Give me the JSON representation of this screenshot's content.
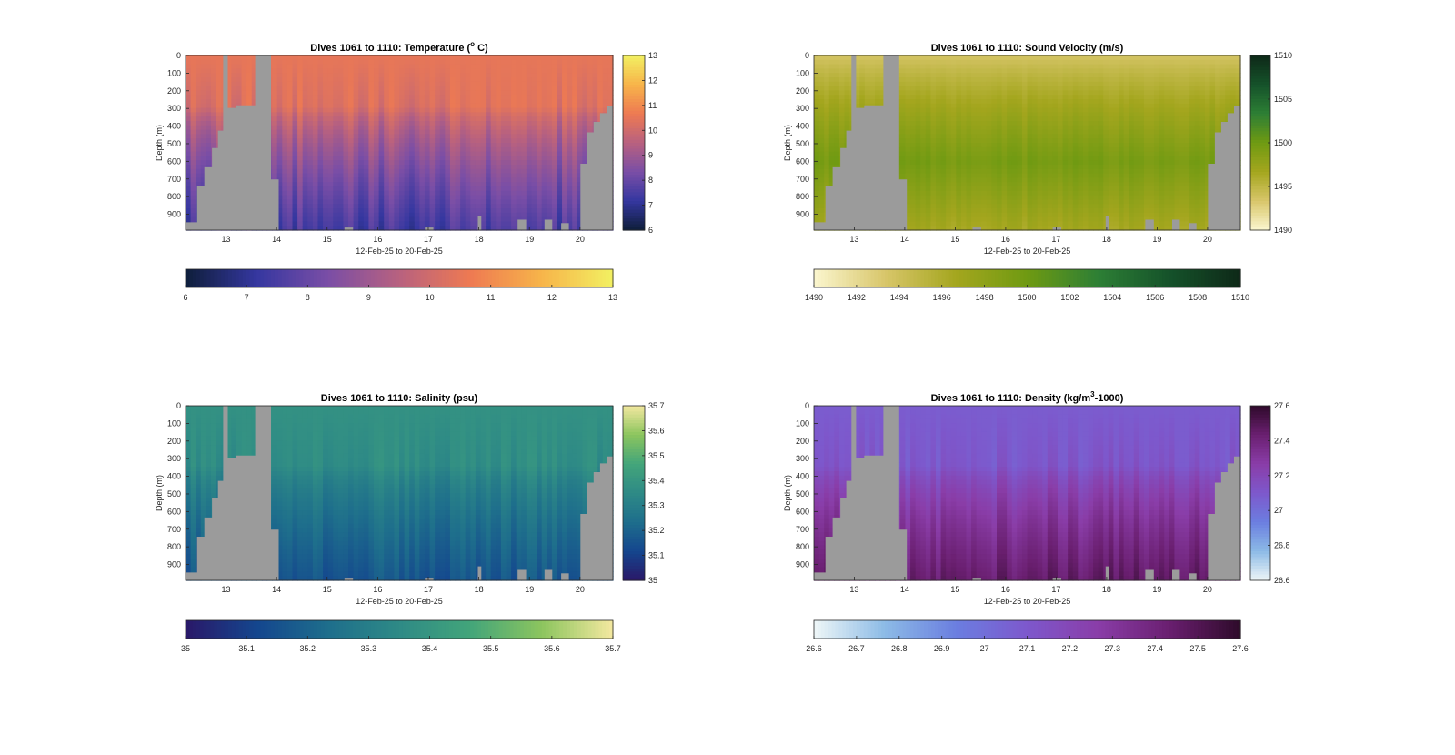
{
  "figure": {
    "background": "#ffffff",
    "missing_color": "#9b9b9b"
  },
  "chart_data": [
    {
      "type": "heatmap",
      "title_prefix": "Dives 1061 to 1110: Temperature (",
      "title_sup": "o",
      "title_suffix": " C)",
      "xlabel": "12-Feb-25 to 20-Feb-25",
      "ylabel": "Depth (m)",
      "xlim": [
        12.2,
        20.65
      ],
      "ylim": [
        0,
        990
      ],
      "x_ticks": [
        13,
        14,
        15,
        16,
        17,
        18,
        19,
        20
      ],
      "x_tick_labels": [
        "13",
        "14",
        "15",
        "16",
        "17",
        "18",
        "19",
        "20"
      ],
      "y_ticks": [
        0,
        100,
        200,
        300,
        400,
        500,
        600,
        700,
        800,
        900
      ],
      "y_tick_labels": [
        "0",
        "100",
        "200",
        "300",
        "400",
        "500",
        "600",
        "700",
        "800",
        "900"
      ],
      "depth_profile": {
        "surface": 10.5,
        "thermocline_depth": 300,
        "deep": 7.4
      },
      "colormap": [
        "#0e1e3a",
        "#3537a0",
        "#7a4ea6",
        "#b8617f",
        "#ee7a52",
        "#f7b44a",
        "#f2f062"
      ],
      "color_range": [
        6,
        13
      ],
      "colorbar_vertical": {
        "ticks": [
          6,
          7,
          8,
          9,
          10,
          11,
          12,
          13
        ],
        "labels": [
          "6",
          "7",
          "8",
          "9",
          "10",
          "11",
          "12",
          "13"
        ]
      },
      "colorbar_horizontal": {
        "ticks": [
          6,
          7,
          8,
          9,
          10,
          11,
          12,
          13
        ],
        "labels": [
          "6",
          "7",
          "8",
          "9",
          "10",
          "11",
          "12",
          "13"
        ]
      }
    },
    {
      "type": "heatmap",
      "title_prefix": "Dives 1061 to 1110: Sound Velocity (m/s)",
      "title_sup": "",
      "title_suffix": "",
      "xlabel": "12-Feb-25 to 20-Feb-25",
      "ylabel": "Depth (m)",
      "xlim": [
        12.2,
        20.65
      ],
      "ylim": [
        0,
        990
      ],
      "x_ticks": [
        13,
        14,
        15,
        16,
        17,
        18,
        19,
        20
      ],
      "x_tick_labels": [
        "13",
        "14",
        "15",
        "16",
        "17",
        "18",
        "19",
        "20"
      ],
      "y_ticks": [
        0,
        100,
        200,
        300,
        400,
        500,
        600,
        700,
        800,
        900
      ],
      "y_tick_labels": [
        "0",
        "100",
        "200",
        "300",
        "400",
        "500",
        "600",
        "700",
        "800",
        "900"
      ],
      "depth_profile": {
        "surface": 1493.5,
        "mid": 1499.5,
        "mid_depth": 600,
        "deep": 1496.5
      },
      "colormap": [
        "#fbf6cf",
        "#d8c66a",
        "#a4a61e",
        "#6f9a12",
        "#2d7f35",
        "#15522a",
        "#0e2918"
      ],
      "color_range": [
        1490,
        1510
      ],
      "colorbar_vertical": {
        "ticks": [
          1490,
          1495,
          1500,
          1505,
          1510
        ],
        "labels": [
          "1490",
          "1495",
          "1500",
          "1505",
          "1510"
        ]
      },
      "colorbar_horizontal": {
        "ticks": [
          1490,
          1492,
          1494,
          1496,
          1498,
          1500,
          1502,
          1504,
          1506,
          1508,
          1510
        ],
        "labels": [
          "1490",
          "1492",
          "1494",
          "1496",
          "1498",
          "1500",
          "1502",
          "1504",
          "1506",
          "1508",
          "1510"
        ]
      }
    },
    {
      "type": "heatmap",
      "title_prefix": "Dives 1061 to 1110: Salinity (psu)",
      "title_sup": "",
      "title_suffix": "",
      "xlabel": "12-Feb-25 to 20-Feb-25",
      "ylabel": "Depth (m)",
      "xlim": [
        12.2,
        20.65
      ],
      "ylim": [
        0,
        990
      ],
      "x_ticks": [
        13,
        14,
        15,
        16,
        17,
        18,
        19,
        20
      ],
      "x_tick_labels": [
        "13",
        "14",
        "15",
        "16",
        "17",
        "18",
        "19",
        "20"
      ],
      "y_ticks": [
        0,
        100,
        200,
        300,
        400,
        500,
        600,
        700,
        800,
        900
      ],
      "y_tick_labels": [
        "0",
        "100",
        "200",
        "300",
        "400",
        "500",
        "600",
        "700",
        "800",
        "900"
      ],
      "depth_profile": {
        "surface": 35.38,
        "thermocline_depth": 350,
        "deep": 35.16
      },
      "colormap": [
        "#2a1868",
        "#14468e",
        "#1e6e8c",
        "#2e8a86",
        "#43a57a",
        "#8cc55e",
        "#f4e8a0"
      ],
      "color_range": [
        35.0,
        35.7
      ],
      "colorbar_vertical": {
        "ticks": [
          35.0,
          35.1,
          35.2,
          35.3,
          35.4,
          35.5,
          35.6,
          35.7
        ],
        "labels": [
          "35",
          "35.1",
          "35.2",
          "35.3",
          "35.4",
          "35.5",
          "35.6",
          "35.7"
        ]
      },
      "colorbar_horizontal": {
        "ticks": [
          35.0,
          35.1,
          35.2,
          35.3,
          35.4,
          35.5,
          35.6,
          35.7
        ],
        "labels": [
          "35",
          "35.1",
          "35.2",
          "35.3",
          "35.4",
          "35.5",
          "35.6",
          "35.7"
        ]
      }
    },
    {
      "type": "heatmap",
      "title_prefix": "Dives 1061 to 1110: Density (kg/m",
      "title_sup": "3",
      "title_suffix": "-1000)",
      "xlabel": "12-Feb-25 to 20-Feb-25",
      "ylabel": "Depth (m)",
      "xlim": [
        12.2,
        20.65
      ],
      "ylim": [
        0,
        990
      ],
      "x_ticks": [
        13,
        14,
        15,
        16,
        17,
        18,
        19,
        20
      ],
      "x_tick_labels": [
        "13",
        "14",
        "15",
        "16",
        "17",
        "18",
        "19",
        "20"
      ],
      "y_ticks": [
        0,
        100,
        200,
        300,
        400,
        500,
        600,
        700,
        800,
        900
      ],
      "y_tick_labels": [
        "0",
        "100",
        "200",
        "300",
        "400",
        "500",
        "600",
        "700",
        "800",
        "900"
      ],
      "depth_profile": {
        "surface": 27.08,
        "thermocline_depth": 350,
        "deep": 27.45
      },
      "colormap": [
        "#eef6f7",
        "#8cbae6",
        "#6b7ee0",
        "#7d58cc",
        "#8a3da8",
        "#6a1f70",
        "#2e0a2a"
      ],
      "color_range": [
        26.6,
        27.6
      ],
      "colorbar_vertical": {
        "ticks": [
          26.6,
          26.8,
          27.0,
          27.2,
          27.4,
          27.6
        ],
        "labels": [
          "26.6",
          "26.8",
          "27",
          "27.2",
          "27.4",
          "27.6"
        ]
      },
      "colorbar_horizontal": {
        "ticks": [
          26.6,
          26.7,
          26.8,
          26.9,
          27.0,
          27.1,
          27.2,
          27.3,
          27.4,
          27.5,
          27.6
        ],
        "labels": [
          "26.6",
          "26.7",
          "26.8",
          "26.9",
          "27",
          "27.1",
          "27.2",
          "27.3",
          "27.4",
          "27.5",
          "27.6"
        ]
      }
    }
  ]
}
